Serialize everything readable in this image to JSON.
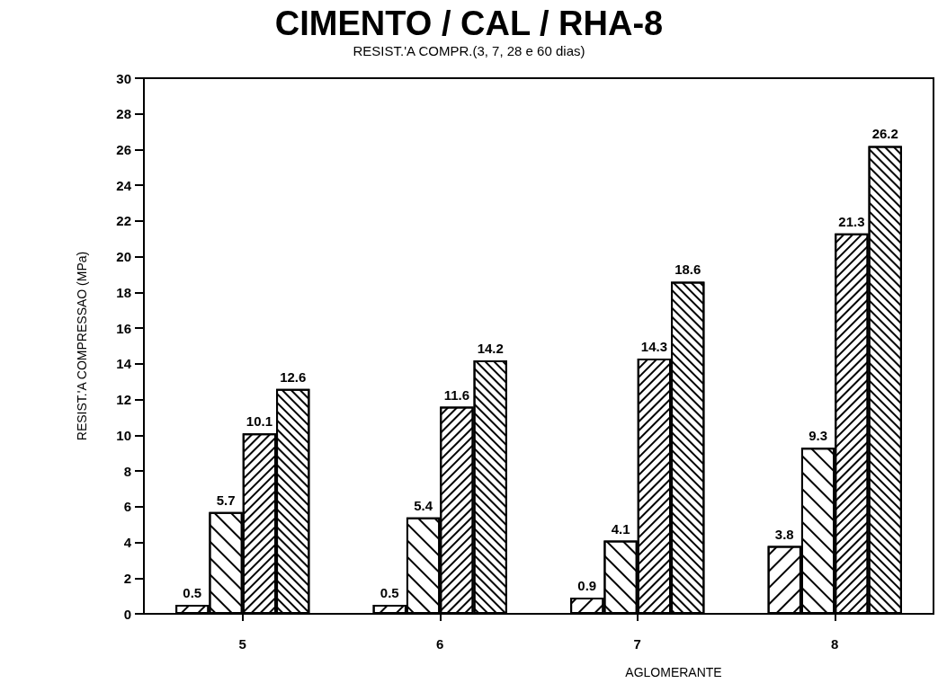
{
  "chart_data": {
    "type": "bar",
    "title": "CIMENTO / CAL / RHA-8",
    "subtitle": "RESIST.'A COMPR.(3, 7, 28 e 60 dias)",
    "xlabel": "AGLOMERANTE",
    "ylabel": "RESIST.'A COMPRESSAO (MPa)",
    "categories": [
      "5",
      "6",
      "7",
      "8"
    ],
    "series": [
      {
        "color": "#000000",
        "values": [
          0.5,
          0.5,
          0.9,
          3.8
        ]
      },
      {
        "color": "#000000",
        "values": [
          5.7,
          5.4,
          4.1,
          9.3
        ]
      },
      {
        "color": "#000000",
        "values": [
          10.1,
          11.6,
          14.3,
          21.3
        ]
      },
      {
        "color": "#000000",
        "values": [
          12.6,
          14.2,
          18.6,
          26.2
        ]
      }
    ],
    "ylim": [
      0,
      30
    ],
    "yticks": [
      0,
      2,
      4,
      6,
      8,
      10,
      12,
      14,
      16,
      18,
      20,
      22,
      24,
      26,
      28,
      30
    ],
    "grid": false,
    "data_labels": true
  }
}
